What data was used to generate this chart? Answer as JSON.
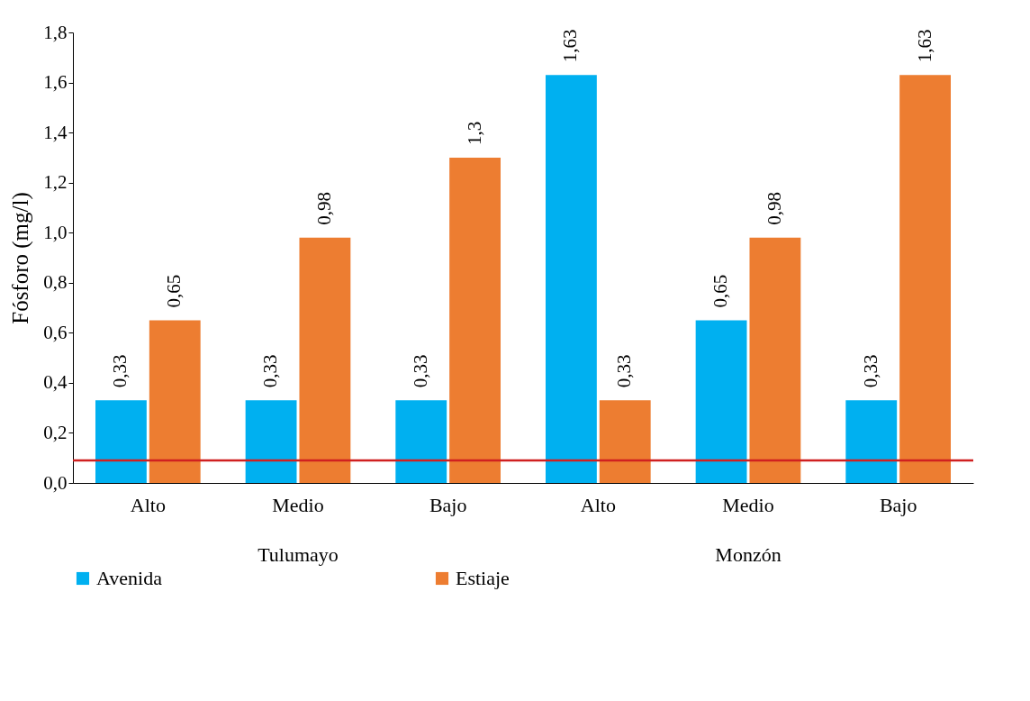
{
  "chart_data": {
    "type": "bar",
    "ylabel": "Fósforo (mg/l)",
    "categories": [
      "Alto",
      "Medio",
      "Bajo",
      "Alto",
      "Medio",
      "Bajo"
    ],
    "series": [
      {
        "name": "Avenida",
        "color": "#00b0f0",
        "values": [
          0.33,
          0.33,
          0.33,
          1.63,
          0.65,
          0.33
        ],
        "value_labels": [
          "0,33",
          "0,33",
          "0,33",
          "1,63",
          "0,65",
          "0,33"
        ]
      },
      {
        "name": "Estiaje",
        "color": "#ed7d31",
        "values": [
          0.65,
          0.98,
          1.3,
          0.33,
          0.98,
          1.63
        ],
        "value_labels": [
          "0,65",
          "0,98",
          "1,3",
          "0,33",
          "0,98",
          "1,63"
        ]
      }
    ],
    "ylim": [
      0,
      1.8
    ],
    "yticks": [
      {
        "value": 0,
        "label": "0,0"
      },
      {
        "value": 0.2,
        "label": "0,2"
      },
      {
        "value": 0.4,
        "label": "0,4"
      },
      {
        "value": 0.6,
        "label": "0,6"
      },
      {
        "value": 0.8,
        "label": "0,8"
      },
      {
        "value": 1,
        "label": "1,0"
      },
      {
        "value": 1.2,
        "label": "1,2"
      },
      {
        "value": 1.4,
        "label": "1,4"
      },
      {
        "value": 1.6,
        "label": "1,6"
      },
      {
        "value": 1.8,
        "label": "1,8"
      }
    ],
    "annotations": [
      "Tulumayo",
      "Monzón"
    ],
    "ref_lines": [
      {
        "axis": "y",
        "value": 0.09,
        "color": "#d02020"
      }
    ],
    "grid": false,
    "legend": "bottom"
  }
}
